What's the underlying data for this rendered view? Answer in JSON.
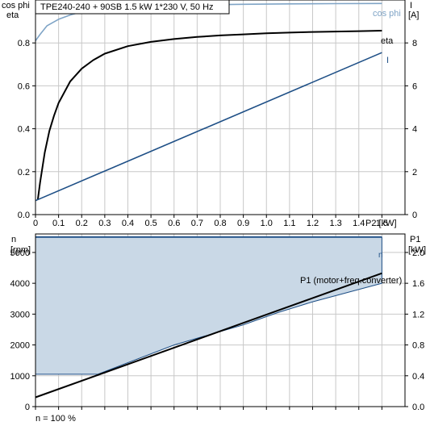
{
  "title": "TPE240-240 + 90SB   1.5 kW   1*230 V, 50 Hz",
  "footer": "n = 100 %",
  "colors": {
    "cosphi": "#7fa4c6",
    "eta": "#000000",
    "current": "#1e4f86",
    "p1": "#000000",
    "speed_fill": "#c9d8e6",
    "speed_line": "#1e4f86"
  },
  "chart_data": [
    {
      "type": "line",
      "title": "TPE240-240 + 90SB   1.5 kW   1*230 V, 50 Hz",
      "xlabel": "P2 [kW]",
      "ylabel_left": [
        "cos phi",
        "eta"
      ],
      "ylabel_right": [
        "I",
        "[A]"
      ],
      "xlim": [
        0,
        1.6
      ],
      "ylim_left": [
        0,
        1.0
      ],
      "ylim_right": [
        0,
        10
      ],
      "xticks": [
        0,
        0.1,
        0.2,
        0.3,
        0.4,
        0.5,
        0.6,
        0.7,
        0.8,
        0.9,
        1.0,
        1.1,
        1.2,
        1.3,
        1.4,
        1.5
      ],
      "xtick_labels": [
        "0",
        "0.1",
        "0.2",
        "0.3",
        "0.4",
        "0.5",
        "0.6",
        "0.7",
        "0.8",
        "0.9",
        "1.0",
        "1.1",
        "1.2",
        "1.3",
        "1.4",
        "1.5"
      ],
      "yticks_left": [
        "0.0",
        "0.2",
        "0.4",
        "0.6",
        "0.8"
      ],
      "yticks_left_values": [
        0,
        0.2,
        0.4,
        0.6,
        0.8
      ],
      "yticks_right": [
        "0",
        "2",
        "4",
        "6",
        "8"
      ],
      "yticks_right_values": [
        0,
        2,
        4,
        6,
        8
      ],
      "grid": true,
      "series": [
        {
          "name": "cos phi",
          "axis": "left",
          "x": [
            0,
            0.02,
            0.05,
            0.1,
            0.15,
            0.2,
            0.3,
            0.4,
            0.5,
            0.7,
            0.9,
            1.1,
            1.3,
            1.5
          ],
          "y": [
            0.81,
            0.84,
            0.88,
            0.91,
            0.93,
            0.945,
            0.96,
            0.967,
            0.972,
            0.977,
            0.98,
            0.982,
            0.983,
            0.984
          ]
        },
        {
          "name": "eta",
          "axis": "left",
          "x": [
            0.01,
            0.02,
            0.04,
            0.06,
            0.08,
            0.1,
            0.15,
            0.2,
            0.25,
            0.3,
            0.4,
            0.5,
            0.6,
            0.7,
            0.8,
            0.9,
            1.0,
            1.1,
            1.2,
            1.3,
            1.4,
            1.5
          ],
          "y": [
            0.07,
            0.15,
            0.29,
            0.39,
            0.46,
            0.52,
            0.62,
            0.68,
            0.72,
            0.75,
            0.785,
            0.805,
            0.818,
            0.828,
            0.835,
            0.84,
            0.845,
            0.848,
            0.851,
            0.853,
            0.855,
            0.857
          ]
        },
        {
          "name": "I",
          "axis": "right",
          "x": [
            0,
            1.5
          ],
          "y": [
            0.65,
            7.55
          ]
        }
      ]
    },
    {
      "type": "area",
      "xlim": [
        0,
        1.6
      ],
      "ylabel_left": [
        "n",
        "[rpm]"
      ],
      "ylabel_right": [
        "P1",
        "[kW]"
      ],
      "ylim_left": [
        0,
        5600
      ],
      "ylim_right": [
        0,
        2.24
      ],
      "xticks": [
        0,
        0.1,
        0.2,
        0.3,
        0.4,
        0.5,
        0.6,
        0.7,
        0.8,
        0.9,
        1.0,
        1.1,
        1.2,
        1.3,
        1.4,
        1.5
      ],
      "yticks_left": [
        "0",
        "1000",
        "2000",
        "3000",
        "4000",
        "5000"
      ],
      "yticks_left_values": [
        0,
        1000,
        2000,
        3000,
        4000,
        5000
      ],
      "yticks_right": [
        "0.0",
        "0.4",
        "0.8",
        "1.2",
        "1.6",
        "2.0"
      ],
      "yticks_right_values": [
        0,
        0.4,
        0.8,
        1.2,
        1.6,
        2.0
      ],
      "grid": true,
      "series": [
        {
          "name": "n",
          "axis": "left",
          "x": [
            0,
            1.5
          ],
          "max": [
            5500,
            5500
          ],
          "min_x": [
            0,
            0.27,
            0.6,
            0.9,
            1.05,
            1.2,
            1.35,
            1.5
          ],
          "min": [
            1050,
            1050,
            2000,
            2650,
            3050,
            3400,
            3700,
            4000
          ]
        },
        {
          "name": "P1 (motor+freq.converter)",
          "axis": "right",
          "x": [
            0,
            1.5
          ],
          "y": [
            0.12,
            1.73
          ]
        }
      ]
    }
  ]
}
